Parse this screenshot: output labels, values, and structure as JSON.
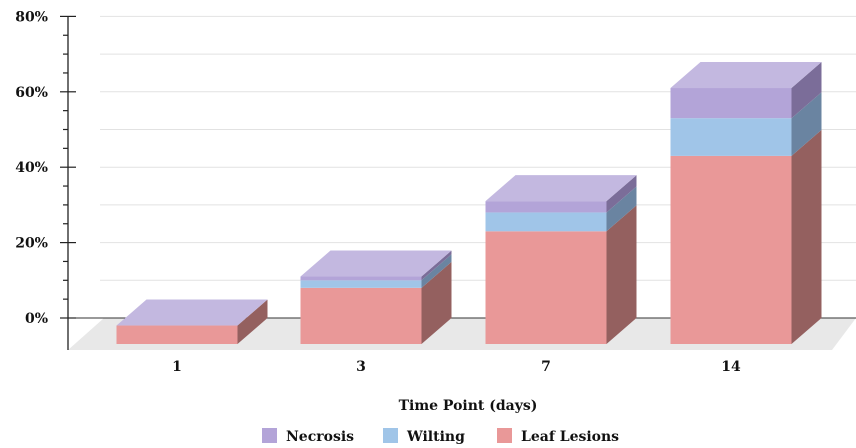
{
  "chart_data": {
    "type": "bar",
    "stacked": true,
    "three_d": true,
    "categories": [
      "1",
      "3",
      "7",
      "14"
    ],
    "series": [
      {
        "name": "Leaf Lesions",
        "values": [
          -2,
          8,
          23,
          43
        ],
        "color": "#e99898",
        "side_color": "#94605f"
      },
      {
        "name": "Wilting",
        "values": [
          0,
          2,
          5,
          10
        ],
        "color": "#a0c5e8",
        "side_color": "#6a84a1"
      },
      {
        "name": "Necrosis",
        "values": [
          0,
          1,
          3,
          8
        ],
        "color": "#b3a4d8",
        "side_color": "#7b6d99"
      }
    ],
    "xlabel": "Time Point (days)",
    "ylabel": "",
    "ylim": [
      0,
      80
    ],
    "yticks": [
      "0%",
      "20%",
      "40%",
      "60%",
      "80%"
    ],
    "grid": true,
    "legend_position": "bottom",
    "floor_color": "#e8e8e8",
    "top_face_color": "#c3b8e0"
  }
}
